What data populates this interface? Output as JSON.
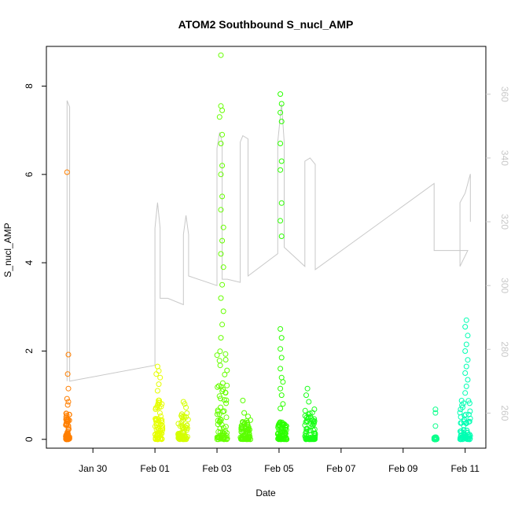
{
  "chart_data": {
    "type": "scatter",
    "title": "ATOM2 Southbound S_nucl_AMP",
    "xlabel": "Date",
    "ylabel": "S_nucl_AMP",
    "x_axis": {
      "type": "date",
      "xlim": [
        "2017-01-28T12:00",
        "2017-02-11T16:00"
      ],
      "ticks": [
        "2017-01-30",
        "2017-02-01",
        "2017-02-03",
        "2017-02-05",
        "2017-02-07",
        "2017-02-09",
        "2017-02-11"
      ],
      "tick_labels": [
        "Jan 30",
        "Feb 01",
        "Feb 03",
        "Feb 05",
        "Feb 07",
        "Feb 09",
        "Feb 11"
      ]
    },
    "y_axis_left": {
      "ylim": [
        -0.2,
        8.9
      ],
      "ticks": [
        0,
        2,
        4,
        6,
        8
      ],
      "tick_labels": [
        "0",
        "2",
        "4",
        "6",
        "8"
      ]
    },
    "y_axis_right": {
      "ylim": [
        249,
        375
      ],
      "ticks": [
        260,
        280,
        300,
        320,
        340,
        360
      ],
      "tick_labels": [
        "260",
        "280",
        "300",
        "320",
        "340",
        "360"
      ],
      "color": "#c8c8c8"
    },
    "grid": false,
    "legend": "none",
    "series": [
      {
        "style": "points",
        "marker": "open-circle",
        "axis": "left",
        "clusters": [
          {
            "color": "#ff7f00",
            "x_start": "2017-01-29T03:00",
            "x_end": "2017-01-29T06:00",
            "dense_max": 0.6,
            "outliers": [
              [
                "2017-01-29T04:00",
                6.05
              ],
              [
                "2017-01-29T05:00",
                1.92
              ],
              [
                "2017-01-29T04:30",
                1.48
              ],
              [
                "2017-01-29T05:00",
                1.15
              ],
              [
                "2017-01-29T04:00",
                0.92
              ],
              [
                "2017-01-29T05:00",
                0.85
              ],
              [
                "2017-01-29T04:30",
                0.78
              ]
            ]
          },
          {
            "color": "#e6ff00",
            "x_start": "2017-02-01T00:00",
            "x_end": "2017-02-01T06:00",
            "dense_max": 0.9,
            "outliers": [
              [
                "2017-02-01T02:00",
                1.65
              ],
              [
                "2017-02-01T03:00",
                1.55
              ],
              [
                "2017-02-01T01:00",
                1.48
              ],
              [
                "2017-02-01T04:00",
                1.4
              ],
              [
                "2017-02-01T03:00",
                1.25
              ],
              [
                "2017-02-01T02:00",
                1.1
              ]
            ]
          },
          {
            "color": "#d4ff00",
            "x_start": "2017-02-01T18:00",
            "x_end": "2017-02-02T02:00",
            "dense_max": 0.6,
            "outliers": [
              [
                "2017-02-01T22:00",
                0.85
              ],
              [
                "2017-02-01T23:00",
                0.8
              ],
              [
                "2017-02-02T00:00",
                0.72
              ]
            ]
          },
          {
            "color": "#66ff00",
            "x_start": "2017-02-03T00:00",
            "x_end": "2017-02-03T08:00",
            "dense_max": 2.0,
            "outliers": [
              [
                "2017-02-03T03:00",
                8.7
              ],
              [
                "2017-02-03T03:00",
                7.55
              ],
              [
                "2017-02-03T04:00",
                7.45
              ],
              [
                "2017-02-03T02:00",
                7.3
              ],
              [
                "2017-02-03T04:00",
                6.9
              ],
              [
                "2017-02-03T03:00",
                6.7
              ],
              [
                "2017-02-03T04:00",
                6.2
              ],
              [
                "2017-02-03T03:00",
                6.0
              ],
              [
                "2017-02-03T04:00",
                5.5
              ],
              [
                "2017-02-03T03:00",
                5.2
              ],
              [
                "2017-02-03T05:00",
                4.8
              ],
              [
                "2017-02-03T04:00",
                4.5
              ],
              [
                "2017-02-03T03:00",
                4.2
              ],
              [
                "2017-02-03T05:00",
                3.9
              ],
              [
                "2017-02-03T04:00",
                3.5
              ],
              [
                "2017-02-03T03:00",
                3.2
              ],
              [
                "2017-02-03T05:00",
                2.9
              ],
              [
                "2017-02-03T04:00",
                2.6
              ],
              [
                "2017-02-03T03:00",
                2.3
              ]
            ]
          },
          {
            "color": "#5aff00",
            "x_start": "2017-02-03T18:00",
            "x_end": "2017-02-04T02:00",
            "dense_max": 0.45,
            "outliers": [
              [
                "2017-02-03T20:00",
                0.88
              ],
              [
                "2017-02-03T21:00",
                0.6
              ],
              [
                "2017-02-04T00:00",
                0.52
              ]
            ]
          },
          {
            "color": "#2cff00",
            "x_start": "2017-02-04T23:00",
            "x_end": "2017-02-05T06:00",
            "dense_max": 0.4,
            "outliers": [
              [
                "2017-02-05T01:00",
                7.82
              ],
              [
                "2017-02-05T02:00",
                7.6
              ],
              [
                "2017-02-05T01:00",
                7.4
              ],
              [
                "2017-02-05T02:00",
                7.2
              ],
              [
                "2017-02-05T01:00",
                6.7
              ],
              [
                "2017-02-05T02:00",
                6.3
              ],
              [
                "2017-02-05T01:00",
                6.1
              ],
              [
                "2017-02-05T02:00",
                5.35
              ],
              [
                "2017-02-05T01:00",
                4.95
              ],
              [
                "2017-02-05T02:00",
                4.6
              ],
              [
                "2017-02-05T01:00",
                2.5
              ],
              [
                "2017-02-05T02:00",
                2.3
              ],
              [
                "2017-02-05T01:00",
                2.05
              ],
              [
                "2017-02-05T02:00",
                1.85
              ],
              [
                "2017-02-05T01:00",
                1.6
              ],
              [
                "2017-02-05T02:00",
                1.4
              ],
              [
                "2017-02-05T03:00",
                1.3
              ],
              [
                "2017-02-05T01:00",
                1.15
              ],
              [
                "2017-02-05T02:00",
                1.0
              ],
              [
                "2017-02-05T03:00",
                0.8
              ],
              [
                "2017-02-05T01:00",
                0.7
              ]
            ]
          },
          {
            "color": "#19ff18",
            "x_start": "2017-02-05T20:00",
            "x_end": "2017-02-06T04:00",
            "dense_max": 0.75,
            "outliers": [
              [
                "2017-02-05T22:00",
                1.15
              ],
              [
                "2017-02-05T21:00",
                1.0
              ],
              [
                "2017-02-05T23:00",
                0.85
              ]
            ]
          },
          {
            "color": "#0dff8c",
            "x_start": "2017-02-10T00:00",
            "x_end": "2017-02-10T02:00",
            "dense_max": 0.05,
            "outliers": [
              [
                "2017-02-10T01:00",
                0.68
              ],
              [
                "2017-02-10T01:00",
                0.6
              ],
              [
                "2017-02-10T01:00",
                0.3
              ],
              [
                "2017-02-10T01:00",
                0.05
              ]
            ]
          },
          {
            "color": "#00ffb3",
            "x_start": "2017-02-10T20:00",
            "x_end": "2017-02-11T04:00",
            "dense_max": 0.9,
            "outliers": [
              [
                "2017-02-11T01:00",
                2.7
              ],
              [
                "2017-02-11T00:00",
                2.55
              ],
              [
                "2017-02-11T02:00",
                2.35
              ],
              [
                "2017-02-11T01:00",
                2.15
              ],
              [
                "2017-02-11T00:00",
                2.0
              ],
              [
                "2017-02-11T02:00",
                1.8
              ],
              [
                "2017-02-11T01:00",
                1.65
              ],
              [
                "2017-02-11T00:00",
                1.5
              ],
              [
                "2017-02-11T02:00",
                1.35
              ],
              [
                "2017-02-11T01:00",
                1.2
              ],
              [
                "2017-02-11T00:00",
                1.05
              ]
            ]
          }
        ]
      },
      {
        "style": "line",
        "color": "#c8c8c8",
        "axis": "right",
        "points": [
          [
            "2017-01-29T04:00",
            270
          ],
          [
            "2017-01-29T04:00",
            358
          ],
          [
            "2017-01-29T06:00",
            356
          ],
          [
            "2017-01-29T06:00",
            270
          ],
          [
            "2017-02-01T00:00",
            275
          ],
          [
            "2017-02-01T00:00",
            318
          ],
          [
            "2017-02-01T02:00",
            326
          ],
          [
            "2017-02-01T04:00",
            318
          ],
          [
            "2017-02-01T04:00",
            296
          ],
          [
            "2017-02-01T10:00",
            296
          ],
          [
            "2017-02-01T22:00",
            294
          ],
          [
            "2017-02-01T22:00",
            316
          ],
          [
            "2017-02-02T00:00",
            322
          ],
          [
            "2017-02-02T02:00",
            316
          ],
          [
            "2017-02-02T02:00",
            303
          ],
          [
            "2017-02-03T00:00",
            300
          ],
          [
            "2017-02-03T00:00",
            343
          ],
          [
            "2017-02-03T02:00",
            348
          ],
          [
            "2017-02-03T04:00",
            345
          ],
          [
            "2017-02-03T04:00",
            302
          ],
          [
            "2017-02-03T08:00",
            302
          ],
          [
            "2017-02-03T18:00",
            301
          ],
          [
            "2017-02-03T18:00",
            345
          ],
          [
            "2017-02-03T20:00",
            347
          ],
          [
            "2017-02-04T00:00",
            346
          ],
          [
            "2017-02-04T00:00",
            303
          ],
          [
            "2017-02-04T23:00",
            310
          ],
          [
            "2017-02-04T23:00",
            345
          ],
          [
            "2017-02-05T02:00",
            357
          ],
          [
            "2017-02-05T04:00",
            345
          ],
          [
            "2017-02-05T04:00",
            312
          ],
          [
            "2017-02-05T20:00",
            306
          ],
          [
            "2017-02-05T20:00",
            339
          ],
          [
            "2017-02-06T00:00",
            340
          ],
          [
            "2017-02-06T04:00",
            338
          ],
          [
            "2017-02-06T04:00",
            305
          ],
          [
            "2017-02-10T00:00",
            332
          ],
          [
            "2017-02-10T00:00",
            311
          ],
          [
            "2017-02-11T02:00",
            311
          ],
          [
            "2017-02-10T20:00",
            306
          ],
          [
            "2017-02-10T20:00",
            326
          ],
          [
            "2017-02-11T00:00",
            329
          ],
          [
            "2017-02-11T04:00",
            335
          ],
          [
            "2017-02-11T04:00",
            320
          ]
        ]
      }
    ]
  }
}
